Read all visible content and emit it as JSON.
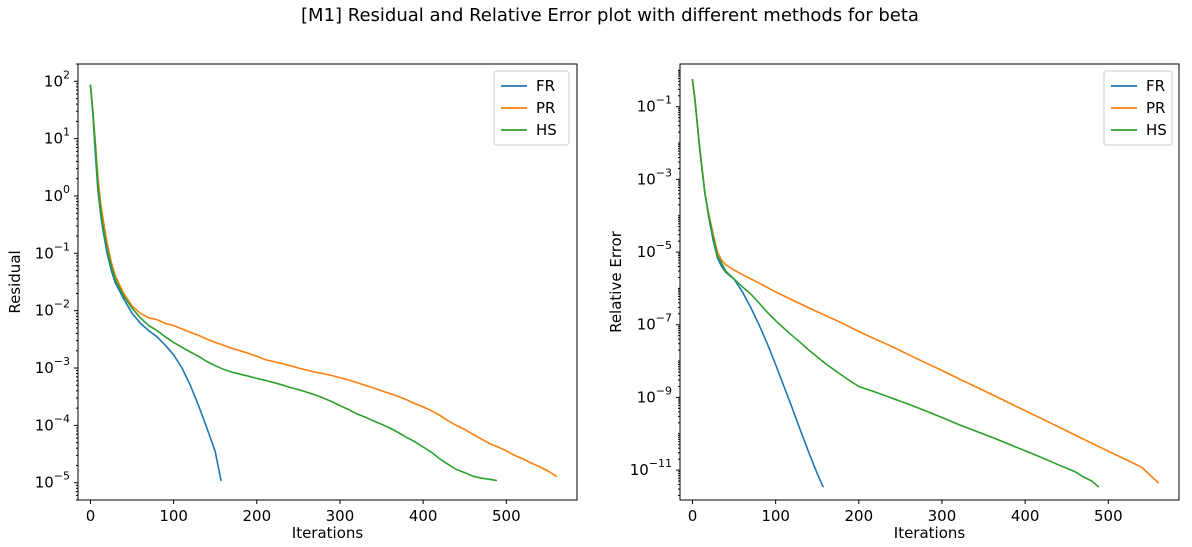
{
  "figure": {
    "suptitle": "[M1] Residual and Relative Error plot with different methods for beta"
  },
  "chart_data": [
    {
      "type": "line",
      "title": "",
      "xlabel": "Iterations",
      "ylabel": "Residual",
      "yscale": "log",
      "xlim": [
        -15,
        585
      ],
      "ylim": [
        5e-06,
        200
      ],
      "xticks": [
        0,
        100,
        200,
        300,
        400,
        500
      ],
      "xtick_labels": [
        "0",
        "100",
        "200",
        "300",
        "400",
        "500"
      ],
      "ytick_exponents": [
        -5,
        -4,
        -3,
        -2,
        -1,
        0,
        1,
        2
      ],
      "grid": false,
      "legend_loc": "upper right",
      "series": [
        {
          "name": "FR",
          "color": "#1f77b4",
          "points": [
            [
              0,
              85
            ],
            [
              3,
              25
            ],
            [
              6,
              5
            ],
            [
              9,
              1.2
            ],
            [
              12,
              0.5
            ],
            [
              15,
              0.25
            ],
            [
              20,
              0.1
            ],
            [
              25,
              0.05
            ],
            [
              30,
              0.03
            ],
            [
              35,
              0.022
            ],
            [
              40,
              0.016
            ],
            [
              50,
              0.009
            ],
            [
              60,
              0.006
            ],
            [
              70,
              0.0045
            ],
            [
              80,
              0.0035
            ],
            [
              90,
              0.0025
            ],
            [
              100,
              0.0017
            ],
            [
              110,
              0.001
            ],
            [
              120,
              0.0005
            ],
            [
              130,
              0.00022
            ],
            [
              140,
              9e-05
            ],
            [
              150,
              3.5e-05
            ],
            [
              157,
              1.1e-05
            ]
          ]
        },
        {
          "name": "PR",
          "color": "#ff7f0e",
          "points": [
            [
              0,
              85
            ],
            [
              3,
              28
            ],
            [
              6,
              8
            ],
            [
              9,
              2
            ],
            [
              12,
              0.8
            ],
            [
              15,
              0.4
            ],
            [
              20,
              0.15
            ],
            [
              25,
              0.07
            ],
            [
              30,
              0.04
            ],
            [
              40,
              0.02
            ],
            [
              50,
              0.012
            ],
            [
              60,
              0.009
            ],
            [
              70,
              0.0075
            ],
            [
              80,
              0.007
            ],
            [
              90,
              0.006
            ],
            [
              100,
              0.0055
            ],
            [
              110,
              0.0048
            ],
            [
              120,
              0.0042
            ],
            [
              130,
              0.0037
            ],
            [
              140,
              0.0032
            ],
            [
              150,
              0.0028
            ],
            [
              160,
              0.0025
            ],
            [
              170,
              0.0022
            ],
            [
              180,
              0.002
            ],
            [
              190,
              0.0018
            ],
            [
              200,
              0.0016
            ],
            [
              210,
              0.0014
            ],
            [
              220,
              0.0013
            ],
            [
              230,
              0.0012
            ],
            [
              240,
              0.0011
            ],
            [
              250,
              0.001
            ],
            [
              260,
              0.00092
            ],
            [
              270,
              0.00085
            ],
            [
              280,
              0.0008
            ],
            [
              290,
              0.00074
            ],
            [
              300,
              0.00068
            ],
            [
              310,
              0.00062
            ],
            [
              320,
              0.00056
            ],
            [
              330,
              0.0005
            ],
            [
              340,
              0.00045
            ],
            [
              350,
              0.0004
            ],
            [
              360,
              0.00036
            ],
            [
              370,
              0.00032
            ],
            [
              380,
              0.00028
            ],
            [
              390,
              0.00024
            ],
            [
              400,
              0.00021
            ],
            [
              410,
              0.00018
            ],
            [
              420,
              0.00015
            ],
            [
              430,
              0.00012
            ],
            [
              440,
              0.0001
            ],
            [
              450,
              8.5e-05
            ],
            [
              460,
              7e-05
            ],
            [
              470,
              5.8e-05
            ],
            [
              480,
              4.8e-05
            ],
            [
              490,
              4.2e-05
            ],
            [
              500,
              3.6e-05
            ],
            [
              510,
              3e-05
            ],
            [
              520,
              2.6e-05
            ],
            [
              530,
              2.2e-05
            ],
            [
              540,
              1.9e-05
            ],
            [
              550,
              1.6e-05
            ],
            [
              560,
              1.3e-05
            ]
          ]
        },
        {
          "name": "HS",
          "color": "#2ca02c",
          "points": [
            [
              0,
              85
            ],
            [
              3,
              27
            ],
            [
              6,
              7
            ],
            [
              9,
              1.5
            ],
            [
              12,
              0.6
            ],
            [
              15,
              0.3
            ],
            [
              20,
              0.12
            ],
            [
              25,
              0.06
            ],
            [
              30,
              0.035
            ],
            [
              35,
              0.025
            ],
            [
              40,
              0.018
            ],
            [
              50,
              0.011
            ],
            [
              60,
              0.0075
            ],
            [
              70,
              0.0055
            ],
            [
              80,
              0.0045
            ],
            [
              90,
              0.0035
            ],
            [
              100,
              0.0028
            ],
            [
              110,
              0.0023
            ],
            [
              120,
              0.0019
            ],
            [
              130,
              0.0016
            ],
            [
              140,
              0.0013
            ],
            [
              150,
              0.0011
            ],
            [
              160,
              0.00095
            ],
            [
              170,
              0.00085
            ],
            [
              180,
              0.00078
            ],
            [
              190,
              0.00072
            ],
            [
              200,
              0.00066
            ],
            [
              210,
              0.00061
            ],
            [
              220,
              0.00056
            ],
            [
              230,
              0.00051
            ],
            [
              240,
              0.00046
            ],
            [
              250,
              0.00042
            ],
            [
              260,
              0.00038
            ],
            [
              270,
              0.00034
            ],
            [
              280,
              0.0003
            ],
            [
              290,
              0.00026
            ],
            [
              300,
              0.00022
            ],
            [
              310,
              0.00019
            ],
            [
              320,
              0.00016
            ],
            [
              330,
              0.00014
            ],
            [
              340,
              0.00012
            ],
            [
              350,
              0.000105
            ],
            [
              360,
              9e-05
            ],
            [
              370,
              7.5e-05
            ],
            [
              380,
              6.2e-05
            ],
            [
              390,
              5.2e-05
            ],
            [
              400,
              4.2e-05
            ],
            [
              410,
              3.4e-05
            ],
            [
              420,
              2.6e-05
            ],
            [
              430,
              2.1e-05
            ],
            [
              440,
              1.7e-05
            ],
            [
              450,
              1.5e-05
            ],
            [
              460,
              1.3e-05
            ],
            [
              470,
              1.2e-05
            ],
            [
              480,
              1.15e-05
            ],
            [
              488,
              1.1e-05
            ]
          ]
        }
      ]
    },
    {
      "type": "line",
      "title": "",
      "xlabel": "Iterations",
      "ylabel": "Relative Error",
      "yscale": "log",
      "xlim": [
        -15,
        585
      ],
      "ylim": [
        1.5e-12,
        1.5
      ],
      "xticks": [
        0,
        100,
        200,
        300,
        400,
        500
      ],
      "xtick_labels": [
        "0",
        "100",
        "200",
        "300",
        "400",
        "500"
      ],
      "ytick_exponents": [
        -11,
        -9,
        -7,
        -5,
        -3,
        -1
      ],
      "grid": false,
      "legend_loc": "upper right",
      "series": [
        {
          "name": "FR",
          "color": "#1f77b4",
          "points": [
            [
              0,
              0.55
            ],
            [
              3,
              0.15
            ],
            [
              6,
              0.03
            ],
            [
              9,
              0.006
            ],
            [
              12,
              0.0015
            ],
            [
              15,
              0.0004
            ],
            [
              20,
              8e-05
            ],
            [
              25,
              2e-05
            ],
            [
              30,
              7e-06
            ],
            [
              35,
              4e-06
            ],
            [
              40,
              2.8e-06
            ],
            [
              50,
              1.8e-06
            ],
            [
              60,
              8e-07
            ],
            [
              70,
              3e-07
            ],
            [
              80,
              1e-07
            ],
            [
              90,
              3e-08
            ],
            [
              100,
              8e-09
            ],
            [
              110,
              2e-09
            ],
            [
              120,
              5e-10
            ],
            [
              130,
              1.2e-10
            ],
            [
              140,
              3e-11
            ],
            [
              150,
              8e-12
            ],
            [
              157,
              3.5e-12
            ]
          ]
        },
        {
          "name": "PR",
          "color": "#ff7f0e",
          "points": [
            [
              0,
              0.55
            ],
            [
              3,
              0.15
            ],
            [
              6,
              0.03
            ],
            [
              9,
              0.006
            ],
            [
              12,
              0.0015
            ],
            [
              15,
              0.0004
            ],
            [
              20,
              0.0001
            ],
            [
              25,
              3e-05
            ],
            [
              30,
              1e-05
            ],
            [
              35,
              6e-06
            ],
            [
              40,
              4.5e-06
            ],
            [
              50,
              3.2e-06
            ],
            [
              60,
              2.4e-06
            ],
            [
              80,
              1.4e-06
            ],
            [
              100,
              8e-07
            ],
            [
              120,
              4.8e-07
            ],
            [
              140,
              2.9e-07
            ],
            [
              160,
              1.8e-07
            ],
            [
              180,
              1.1e-07
            ],
            [
              200,
              6.5e-08
            ],
            [
              220,
              4e-08
            ],
            [
              240,
              2.5e-08
            ],
            [
              260,
              1.5e-08
            ],
            [
              280,
              9e-09
            ],
            [
              300,
              5.5e-09
            ],
            [
              320,
              3.3e-09
            ],
            [
              340,
              2e-09
            ],
            [
              360,
              1.2e-09
            ],
            [
              380,
              7.2e-10
            ],
            [
              400,
              4.3e-10
            ],
            [
              420,
              2.6e-10
            ],
            [
              440,
              1.55e-10
            ],
            [
              460,
              9.2e-11
            ],
            [
              480,
              5.5e-11
            ],
            [
              500,
              3.3e-11
            ],
            [
              520,
              2e-11
            ],
            [
              540,
              1.2e-11
            ],
            [
              560,
              4.5e-12
            ]
          ]
        },
        {
          "name": "HS",
          "color": "#2ca02c",
          "points": [
            [
              0,
              0.55
            ],
            [
              3,
              0.15
            ],
            [
              6,
              0.03
            ],
            [
              9,
              0.006
            ],
            [
              12,
              0.0015
            ],
            [
              15,
              0.0004
            ],
            [
              20,
              9e-05
            ],
            [
              25,
              2.5e-05
            ],
            [
              30,
              8e-06
            ],
            [
              35,
              5e-06
            ],
            [
              40,
              3e-06
            ],
            [
              50,
              1.8e-06
            ],
            [
              60,
              1.1e-06
            ],
            [
              70,
              7e-07
            ],
            [
              80,
              4e-07
            ],
            [
              90,
              2.2e-07
            ],
            [
              100,
              1.3e-07
            ],
            [
              110,
              8e-08
            ],
            [
              120,
              5e-08
            ],
            [
              130,
              3.2e-08
            ],
            [
              140,
              2e-08
            ],
            [
              150,
              1.3e-08
            ],
            [
              160,
              8.5e-09
            ],
            [
              170,
              5.8e-09
            ],
            [
              180,
              4e-09
            ],
            [
              190,
              2.8e-09
            ],
            [
              200,
              2e-09
            ],
            [
              220,
              1.4e-09
            ],
            [
              240,
              9.5e-10
            ],
            [
              260,
              6.5e-10
            ],
            [
              280,
              4.3e-10
            ],
            [
              300,
              2.8e-10
            ],
            [
              320,
              1.8e-10
            ],
            [
              340,
              1.2e-10
            ],
            [
              360,
              8e-11
            ],
            [
              380,
              5.2e-11
            ],
            [
              400,
              3.4e-11
            ],
            [
              420,
              2.2e-11
            ],
            [
              440,
              1.4e-11
            ],
            [
              460,
              9e-12
            ],
            [
              470,
              6.5e-12
            ],
            [
              480,
              5e-12
            ],
            [
              488,
              3.5e-12
            ]
          ]
        }
      ]
    }
  ]
}
